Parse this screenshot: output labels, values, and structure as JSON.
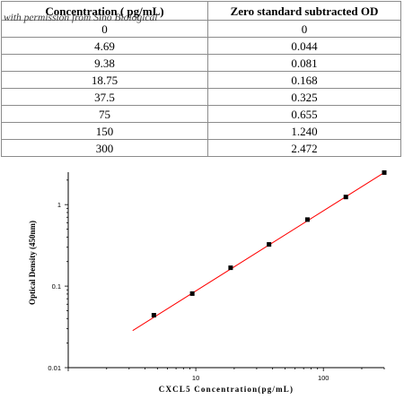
{
  "table": {
    "headers": [
      "Concentration ( pg/mL)",
      "Zero standard subtracted OD"
    ],
    "watermark": "with permission from Sino Biological",
    "rows": [
      [
        "0",
        "0"
      ],
      [
        "4.69",
        "0.044"
      ],
      [
        "9.38",
        "0.081"
      ],
      [
        "18.75",
        "0.168"
      ],
      [
        "37.5",
        "0.325"
      ],
      [
        "75",
        "0.655"
      ],
      [
        "150",
        "1.240"
      ],
      [
        "300",
        "2.472"
      ]
    ]
  },
  "chart_data": {
    "type": "scatter",
    "title": "",
    "xlabel": "CXCL5 Concentration(pg/mL)",
    "ylabel": "Optical Density (450nm)",
    "xscale": "log",
    "yscale": "log",
    "xlim": [
      1,
      300
    ],
    "ylim": [
      0.01,
      2.5
    ],
    "x_ticks": [
      "10",
      "100"
    ],
    "y_ticks": [
      "0.01",
      "0.1",
      "1"
    ],
    "grid": false,
    "series": [
      {
        "x": [
          4.69,
          9.38,
          18.75,
          37.5,
          75,
          150,
          300
        ],
        "y": [
          0.044,
          0.081,
          0.168,
          0.325,
          0.655,
          1.24,
          2.472
        ],
        "marker": "square",
        "color": "#000000"
      }
    ],
    "fit_line": {
      "x": [
        3.2,
        300
      ],
      "y": [
        0.0285,
        2.472
      ],
      "color": "#ff0000"
    }
  }
}
